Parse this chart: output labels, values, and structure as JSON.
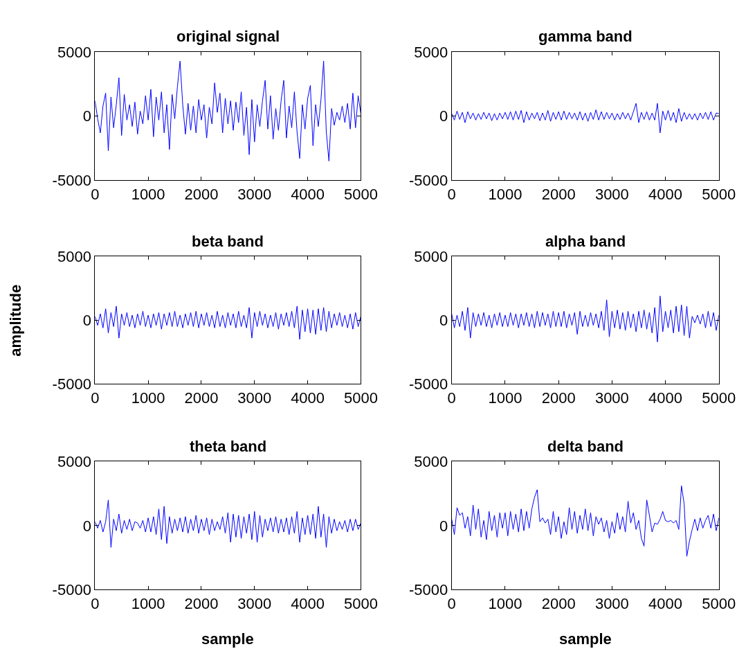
{
  "chart_data": [
    {
      "type": "line",
      "title": "original signal",
      "xlim": [
        0,
        5000
      ],
      "ylim": [
        -5000,
        5000
      ],
      "xticks": [
        0,
        1000,
        2000,
        3000,
        4000,
        5000
      ],
      "yticks": [
        -5000,
        0,
        5000
      ],
      "x": [
        0,
        50,
        100,
        150,
        200,
        250,
        300,
        350,
        400,
        450,
        500,
        550,
        600,
        650,
        700,
        750,
        800,
        850,
        900,
        950,
        1000,
        1050,
        1100,
        1150,
        1200,
        1250,
        1300,
        1350,
        1400,
        1450,
        1500,
        1550,
        1600,
        1650,
        1700,
        1750,
        1800,
        1850,
        1900,
        1950,
        2000,
        2050,
        2100,
        2150,
        2200,
        2250,
        2300,
        2350,
        2400,
        2450,
        2500,
        2550,
        2600,
        2650,
        2700,
        2750,
        2800,
        2850,
        2900,
        2950,
        3000,
        3050,
        3100,
        3150,
        3200,
        3250,
        3300,
        3350,
        3400,
        3450,
        3500,
        3550,
        3600,
        3650,
        3700,
        3750,
        3800,
        3850,
        3900,
        3950,
        4000,
        4050,
        4100,
        4150,
        4200,
        4250,
        4300,
        4350,
        4400,
        4450,
        4500,
        4550,
        4600,
        4650,
        4700,
        4750,
        4800,
        4850,
        4900,
        4950,
        5000
      ],
      "series": [
        {
          "color": "#0000ff",
          "values": [
            1200,
            -200,
            -1300,
            800,
            1800,
            -2700,
            1500,
            -900,
            900,
            3000,
            -1500,
            1700,
            -300,
            900,
            -800,
            1100,
            -1400,
            400,
            -600,
            1600,
            -300,
            2100,
            -1600,
            1500,
            -300,
            1900,
            -1300,
            900,
            -2600,
            1700,
            -200,
            2300,
            4300,
            900,
            -1400,
            1000,
            -1100,
            800,
            -1300,
            1300,
            -300,
            900,
            -1700,
            700,
            -600,
            2600,
            300,
            1800,
            -1300,
            1400,
            -600,
            1200,
            -1100,
            1100,
            -500,
            1900,
            -1500,
            700,
            -3000,
            1300,
            -2000,
            900,
            -800,
            1200,
            2800,
            -1000,
            1600,
            -1800,
            600,
            -1100,
            1200,
            2800,
            -1700,
            800,
            -900,
            1900,
            -1200,
            -3300,
            900,
            -1000,
            1400,
            2400,
            -2300,
            900,
            -800,
            1300,
            4300,
            -1200,
            -3500,
            600,
            -700,
            300,
            -300,
            800,
            -500,
            1000,
            -1000,
            1800,
            -900,
            1600,
            200
          ]
        }
      ]
    },
    {
      "type": "line",
      "title": "gamma band",
      "xlim": [
        0,
        5000
      ],
      "ylim": [
        -5000,
        5000
      ],
      "xticks": [
        0,
        1000,
        2000,
        3000,
        4000,
        5000
      ],
      "yticks": [
        -5000,
        0,
        5000
      ],
      "x": [
        0,
        50,
        100,
        150,
        200,
        250,
        300,
        350,
        400,
        450,
        500,
        550,
        600,
        650,
        700,
        750,
        800,
        850,
        900,
        950,
        1000,
        1050,
        1100,
        1150,
        1200,
        1250,
        1300,
        1350,
        1400,
        1450,
        1500,
        1550,
        1600,
        1650,
        1700,
        1750,
        1800,
        1850,
        1900,
        1950,
        2000,
        2050,
        2100,
        2150,
        2200,
        2250,
        2300,
        2350,
        2400,
        2450,
        2500,
        2550,
        2600,
        2650,
        2700,
        2750,
        2800,
        2850,
        2900,
        2950,
        3000,
        3050,
        3100,
        3150,
        3200,
        3250,
        3300,
        3350,
        3400,
        3450,
        3500,
        3550,
        3600,
        3650,
        3700,
        3750,
        3800,
        3850,
        3900,
        3950,
        4000,
        4050,
        4100,
        4150,
        4200,
        4250,
        4300,
        4350,
        4400,
        4450,
        4500,
        4550,
        4600,
        4650,
        4700,
        4750,
        4800,
        4850,
        4900,
        4950,
        5000
      ],
      "series": [
        {
          "color": "#0000ff",
          "values": [
            200,
            -300,
            400,
            -250,
            300,
            -500,
            350,
            -200,
            250,
            -300,
            200,
            -250,
            300,
            -200,
            250,
            -350,
            200,
            -300,
            250,
            -200,
            300,
            -250,
            350,
            -300,
            400,
            -250,
            450,
            -500,
            350,
            -300,
            250,
            -200,
            300,
            -350,
            250,
            -300,
            450,
            -400,
            300,
            -250,
            350,
            -300,
            400,
            -250,
            300,
            -200,
            250,
            -300,
            350,
            -300,
            250,
            -400,
            300,
            -250,
            500,
            -300,
            350,
            -250,
            300,
            -200,
            250,
            -300,
            200,
            -250,
            300,
            -200,
            250,
            -300,
            350,
            1000,
            -500,
            300,
            -250,
            350,
            -300,
            250,
            -300,
            1000,
            -1300,
            400,
            -300,
            450,
            -350,
            300,
            -500,
            600,
            -400,
            300,
            -250,
            200,
            -250,
            200,
            -300,
            250,
            -200,
            300,
            -250,
            350,
            -300,
            250,
            200
          ]
        }
      ]
    },
    {
      "type": "line",
      "title": "beta band",
      "ylabel": "amplitude",
      "xlim": [
        0,
        5000
      ],
      "ylim": [
        -5000,
        5000
      ],
      "xticks": [
        0,
        1000,
        2000,
        3000,
        4000,
        5000
      ],
      "yticks": [
        -5000,
        0,
        5000
      ],
      "x": [
        0,
        50,
        100,
        150,
        200,
        250,
        300,
        350,
        400,
        450,
        500,
        550,
        600,
        650,
        700,
        750,
        800,
        850,
        900,
        950,
        1000,
        1050,
        1100,
        1150,
        1200,
        1250,
        1300,
        1350,
        1400,
        1450,
        1500,
        1550,
        1600,
        1650,
        1700,
        1750,
        1800,
        1850,
        1900,
        1950,
        2000,
        2050,
        2100,
        2150,
        2200,
        2250,
        2300,
        2350,
        2400,
        2450,
        2500,
        2550,
        2600,
        2650,
        2700,
        2750,
        2800,
        2850,
        2900,
        2950,
        3000,
        3050,
        3100,
        3150,
        3200,
        3250,
        3300,
        3350,
        3400,
        3450,
        3500,
        3550,
        3600,
        3650,
        3700,
        3750,
        3800,
        3850,
        3900,
        3950,
        4000,
        4050,
        4100,
        4150,
        4200,
        4250,
        4300,
        4350,
        4400,
        4450,
        4500,
        4550,
        4600,
        4650,
        4700,
        4750,
        4800,
        4850,
        4900,
        4950,
        5000
      ],
      "series": [
        {
          "color": "#0000ff",
          "values": [
            300,
            -400,
            500,
            -600,
            900,
            -1000,
            600,
            -500,
            1100,
            -1400,
            500,
            -400,
            600,
            -500,
            400,
            -600,
            500,
            -400,
            700,
            -500,
            400,
            -600,
            500,
            -400,
            600,
            -700,
            500,
            -400,
            600,
            -500,
            700,
            -500,
            400,
            -600,
            500,
            -400,
            600,
            -500,
            700,
            -600,
            500,
            -400,
            600,
            -500,
            400,
            -600,
            700,
            -500,
            400,
            -600,
            600,
            -400,
            500,
            -600,
            700,
            -500,
            400,
            -600,
            1000,
            -1400,
            600,
            -500,
            700,
            -400,
            500,
            -600,
            400,
            -500,
            600,
            -700,
            500,
            -400,
            600,
            -500,
            700,
            -600,
            1100,
            -1500,
            800,
            -900,
            900,
            -1000,
            800,
            -1100,
            900,
            -800,
            1000,
            -900,
            700,
            -600,
            500,
            -400,
            600,
            -500,
            400,
            -600,
            500,
            -700,
            600,
            -500,
            300
          ]
        }
      ]
    },
    {
      "type": "line",
      "title": "alpha band",
      "xlim": [
        0,
        5000
      ],
      "ylim": [
        -5000,
        5000
      ],
      "xticks": [
        0,
        1000,
        2000,
        3000,
        4000,
        5000
      ],
      "yticks": [
        -5000,
        0,
        5000
      ],
      "x": [
        0,
        50,
        100,
        150,
        200,
        250,
        300,
        350,
        400,
        450,
        500,
        550,
        600,
        650,
        700,
        750,
        800,
        850,
        900,
        950,
        1000,
        1050,
        1100,
        1150,
        1200,
        1250,
        1300,
        1350,
        1400,
        1450,
        1500,
        1550,
        1600,
        1650,
        1700,
        1750,
        1800,
        1850,
        1900,
        1950,
        2000,
        2050,
        2100,
        2150,
        2200,
        2250,
        2300,
        2350,
        2400,
        2450,
        2500,
        2550,
        2600,
        2650,
        2700,
        2750,
        2800,
        2850,
        2900,
        2950,
        3000,
        3050,
        3100,
        3150,
        3200,
        3250,
        3300,
        3350,
        3400,
        3450,
        3500,
        3550,
        3600,
        3650,
        3700,
        3750,
        3800,
        3850,
        3900,
        3950,
        4000,
        4050,
        4100,
        4150,
        4200,
        4250,
        4300,
        4350,
        4400,
        4450,
        4500,
        4550,
        4600,
        4650,
        4700,
        4750,
        4800,
        4850,
        4900,
        4950,
        5000
      ],
      "series": [
        {
          "color": "#0000ff",
          "values": [
            500,
            -600,
            400,
            -500,
            700,
            -800,
            1000,
            -1400,
            600,
            -500,
            500,
            -400,
            600,
            -500,
            400,
            -600,
            500,
            -400,
            600,
            -500,
            400,
            -500,
            600,
            -400,
            500,
            -600,
            500,
            -400,
            600,
            -500,
            500,
            -600,
            700,
            -500,
            600,
            -400,
            500,
            -600,
            700,
            -500,
            600,
            -500,
            700,
            -600,
            500,
            -400,
            600,
            -1100,
            700,
            -500,
            400,
            -500,
            600,
            -400,
            500,
            -600,
            700,
            -800,
            1600,
            -1300,
            700,
            -600,
            800,
            -700,
            600,
            -800,
            700,
            -600,
            500,
            -900,
            700,
            -600,
            800,
            -700,
            600,
            -1000,
            1000,
            -1700,
            1900,
            -900,
            700,
            -600,
            800,
            -1000,
            1100,
            -900,
            1200,
            -1200,
            1100,
            -1400,
            300,
            -200,
            400,
            -300,
            500,
            -600,
            700,
            -500,
            600,
            -800,
            400
          ]
        }
      ]
    },
    {
      "type": "line",
      "title": "theta band",
      "xlabel": "sample",
      "xlim": [
        0,
        5000
      ],
      "ylim": [
        -5000,
        5000
      ],
      "xticks": [
        0,
        1000,
        2000,
        3000,
        4000,
        5000
      ],
      "yticks": [
        -5000,
        0,
        5000
      ],
      "x": [
        0,
        50,
        100,
        150,
        200,
        250,
        300,
        350,
        400,
        450,
        500,
        550,
        600,
        650,
        700,
        750,
        800,
        850,
        900,
        950,
        1000,
        1050,
        1100,
        1150,
        1200,
        1250,
        1300,
        1350,
        1400,
        1450,
        1500,
        1550,
        1600,
        1650,
        1700,
        1750,
        1800,
        1850,
        1900,
        1950,
        2000,
        2050,
        2100,
        2150,
        2200,
        2250,
        2300,
        2350,
        2400,
        2450,
        2500,
        2550,
        2600,
        2650,
        2700,
        2750,
        2800,
        2850,
        2900,
        2950,
        3000,
        3050,
        3100,
        3150,
        3200,
        3250,
        3300,
        3350,
        3400,
        3450,
        3500,
        3550,
        3600,
        3650,
        3700,
        3750,
        3800,
        3850,
        3900,
        3950,
        4000,
        4050,
        4100,
        4150,
        4200,
        4250,
        4300,
        4350,
        4400,
        4450,
        4500,
        4550,
        4600,
        4650,
        4700,
        4750,
        4800,
        4850,
        4900,
        4950,
        5000
      ],
      "series": [
        {
          "color": "#0000ff",
          "values": [
            300,
            -200,
            400,
            -500,
            300,
            2000,
            -1700,
            500,
            -400,
            900,
            -600,
            400,
            -300,
            500,
            -400,
            300,
            200,
            -200,
            400,
            -500,
            600,
            -500,
            700,
            -700,
            1300,
            -1100,
            1500,
            -1400,
            700,
            -600,
            500,
            -400,
            600,
            -500,
            700,
            -600,
            500,
            -400,
            800,
            -600,
            500,
            -400,
            600,
            -700,
            500,
            -400,
            300,
            -300,
            700,
            -600,
            1000,
            -1300,
            900,
            -900,
            800,
            -1000,
            700,
            -600,
            900,
            -1100,
            1100,
            -1300,
            800,
            -900,
            500,
            -400,
            600,
            -500,
            700,
            -600,
            500,
            -500,
            600,
            -700,
            700,
            -600,
            1100,
            -1300,
            600,
            -700,
            800,
            -700,
            900,
            -1000,
            1500,
            -900,
            900,
            -1700,
            700,
            -600,
            500,
            -400,
            300,
            -300,
            400,
            -500,
            500,
            -400,
            500,
            -300,
            200
          ]
        }
      ]
    },
    {
      "type": "line",
      "title": "delta band",
      "xlabel": "sample",
      "xlim": [
        0,
        5000
      ],
      "ylim": [
        -5000,
        5000
      ],
      "xticks": [
        0,
        1000,
        2000,
        3000,
        4000,
        5000
      ],
      "yticks": [
        -5000,
        0,
        5000
      ],
      "x": [
        0,
        50,
        100,
        150,
        200,
        250,
        300,
        350,
        400,
        450,
        500,
        550,
        600,
        650,
        700,
        750,
        800,
        850,
        900,
        950,
        1000,
        1050,
        1100,
        1150,
        1200,
        1250,
        1300,
        1350,
        1400,
        1450,
        1500,
        1550,
        1600,
        1650,
        1700,
        1750,
        1800,
        1850,
        1900,
        1950,
        2000,
        2050,
        2100,
        2150,
        2200,
        2250,
        2300,
        2350,
        2400,
        2450,
        2500,
        2550,
        2600,
        2650,
        2700,
        2750,
        2800,
        2850,
        2900,
        2950,
        3000,
        3050,
        3100,
        3150,
        3200,
        3250,
        3300,
        3350,
        3400,
        3450,
        3500,
        3550,
        3600,
        3650,
        3700,
        3750,
        3800,
        3850,
        3900,
        3950,
        4000,
        4050,
        4100,
        4150,
        4200,
        4250,
        4300,
        4350,
        4400,
        4450,
        4500,
        4550,
        4600,
        4650,
        4700,
        4750,
        4800,
        4850,
        4900,
        4950,
        5000
      ],
      "series": [
        {
          "color": "#0000ff",
          "values": [
            500,
            -700,
            1400,
            800,
            1000,
            -200,
            700,
            -800,
            1600,
            -300,
            1300,
            -900,
            400,
            -1100,
            1100,
            -400,
            800,
            -900,
            1000,
            -200,
            1000,
            -800,
            1100,
            -300,
            900,
            -500,
            1300,
            -400,
            1100,
            -200,
            1300,
            2200,
            2800,
            300,
            600,
            200,
            500,
            -700,
            1100,
            -500,
            700,
            -1000,
            300,
            -700,
            1400,
            -300,
            1100,
            -600,
            800,
            -300,
            1300,
            -400,
            1000,
            -800,
            700,
            100,
            600,
            -500,
            400,
            -1000,
            300,
            -600,
            1000,
            -300,
            700,
            -500,
            1900,
            200,
            1000,
            -300,
            400,
            -1000,
            -1600,
            2000,
            800,
            -500,
            200,
            100,
            500,
            1100,
            400,
            300,
            400,
            200,
            400,
            -300,
            3100,
            1700,
            -2400,
            -1200,
            -300,
            500,
            -400,
            600,
            -200,
            400,
            800,
            -200,
            900,
            -400,
            600
          ]
        }
      ]
    }
  ]
}
